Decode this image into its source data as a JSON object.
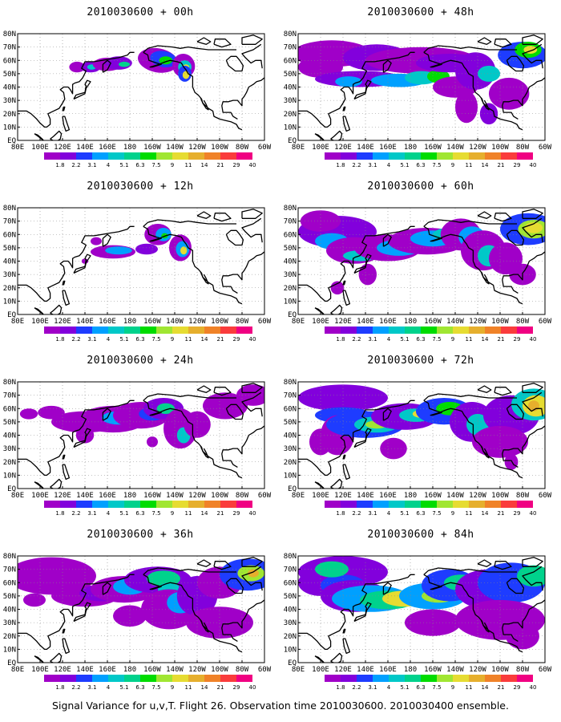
{
  "panels": [
    {
      "title": "2010030600 + 00h",
      "lead": 0
    },
    {
      "title": "2010030600 + 48h",
      "lead": 48
    },
    {
      "title": "2010030600 + 12h",
      "lead": 12
    },
    {
      "title": "2010030600 + 60h",
      "lead": 60
    },
    {
      "title": "2010030600 + 24h",
      "lead": 24
    },
    {
      "title": "2010030600 + 72h",
      "lead": 72
    },
    {
      "title": "2010030600 + 36h",
      "lead": 36
    },
    {
      "title": "2010030600 + 84h",
      "lead": 84
    }
  ],
  "lat_labels": [
    "80N",
    "70N",
    "60N",
    "50N",
    "40N",
    "30N",
    "20N",
    "10N",
    "EQ"
  ],
  "lon_labels": [
    "80E",
    "100E",
    "120E",
    "140E",
    "160E",
    "180",
    "160W",
    "140W",
    "120W",
    "100W",
    "80W",
    "60W"
  ],
  "colorbar": {
    "labels": [
      "1.8",
      "2.2",
      "3.1",
      "4",
      "5.1",
      "6.3",
      "7.5",
      "9",
      "11",
      "14",
      "21",
      "29",
      "40"
    ],
    "colors": [
      "#a000c8",
      "#8200dc",
      "#1e3cff",
      "#00a0ff",
      "#00c8c8",
      "#00d28c",
      "#00dc00",
      "#a0e632",
      "#e6dc32",
      "#e6af2d",
      "#f08228",
      "#fa3c3c",
      "#f00082"
    ]
  },
  "footer": "Signal Variance for u,v,T. Flight 26. Observation time 2010030600. 2010030400 ensemble."
}
